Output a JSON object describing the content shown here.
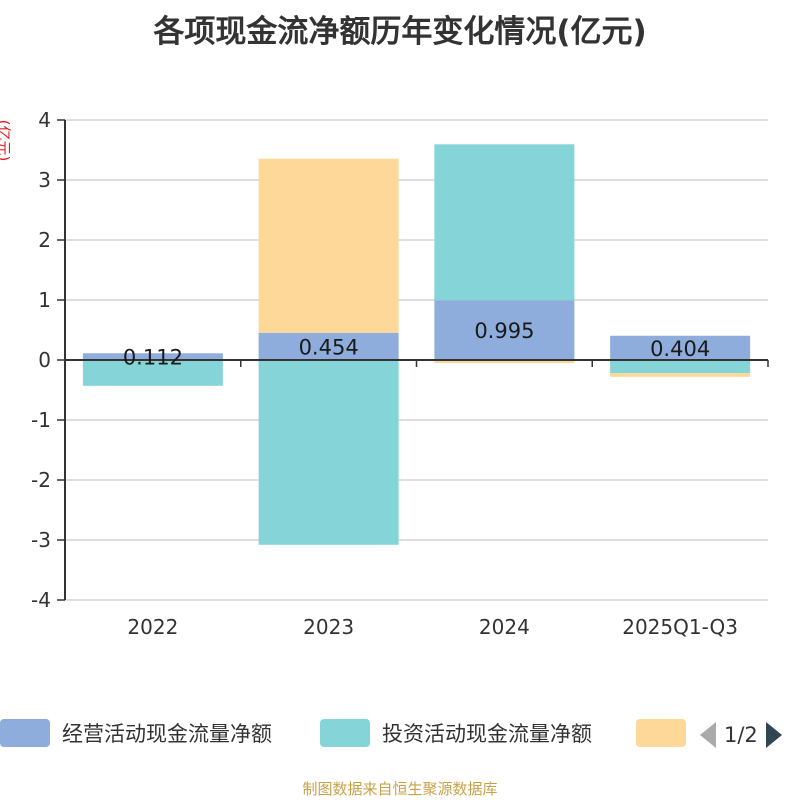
{
  "chart_data": {
    "type": "bar",
    "stacked": true,
    "title": "各项现金流净额历年变化情况(亿元)",
    "ylabel": "(亿元)",
    "ylim": [
      -4,
      4
    ],
    "yticks": [
      4,
      3,
      2,
      1,
      0,
      -1,
      -2,
      -3,
      -4
    ],
    "categories": [
      "2022",
      "2023",
      "2024",
      "2025Q1-Q3"
    ],
    "series": [
      {
        "name": "经营活动现金流量净额",
        "color": "#8eacdc",
        "values": [
          0.112,
          0.454,
          0.995,
          0.404
        ],
        "labels": [
          "0.112",
          "0.454",
          "0.995",
          "0.404"
        ]
      },
      {
        "name": "投资活动现金流量净额",
        "color": "#85d5d8",
        "values": [
          -0.43,
          -3.08,
          2.6,
          -0.22
        ],
        "labels": null
      },
      {
        "name": "",
        "color": "#fdd899",
        "values": [
          0.0,
          2.9,
          -0.05,
          -0.06
        ],
        "labels": null
      }
    ],
    "legend_position": "bottom",
    "legend_page": "1/2"
  },
  "source": "制图数据来自恒生聚源数据库"
}
